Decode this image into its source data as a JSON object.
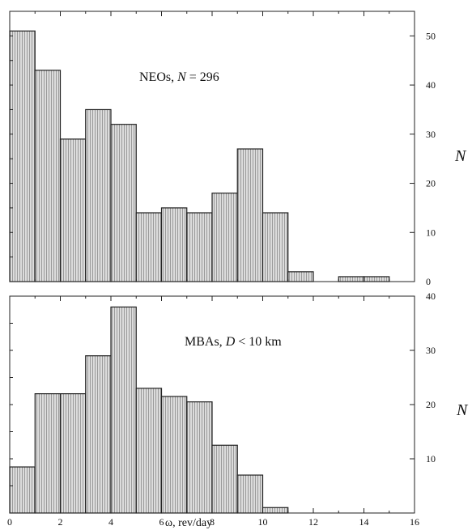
{
  "chart_data": [
    {
      "type": "bar",
      "annotation": {
        "prefix": "NEOs, ",
        "var": "N",
        "rest": " = 296"
      },
      "ylabel": "N",
      "xlim": [
        0,
        16
      ],
      "ylim": [
        0,
        55
      ],
      "bin_edges": [
        0,
        1,
        2,
        3,
        4,
        5,
        6,
        7,
        8,
        9,
        10,
        11,
        12,
        13,
        14,
        15
      ],
      "values": [
        51,
        43,
        29,
        35,
        32,
        14,
        15,
        14,
        18,
        27,
        14,
        2,
        0,
        1,
        1
      ],
      "yticks": [
        "0",
        "10",
        "20",
        "30",
        "40",
        "50"
      ],
      "ytick_values": [
        0,
        10,
        20,
        30,
        40,
        50
      ]
    },
    {
      "type": "bar",
      "annotation": {
        "prefix": "MBAs, ",
        "var": "D",
        "rest": " < 10 km"
      },
      "ylabel": "N",
      "xlabel": "ω,  rev/day",
      "xlim": [
        0,
        16
      ],
      "ylim": [
        0,
        40
      ],
      "bin_edges": [
        0,
        1,
        2,
        3,
        4,
        5,
        6,
        7,
        8,
        9,
        10,
        11
      ],
      "values": [
        8.5,
        22,
        22,
        29,
        38,
        23,
        21.5,
        20.5,
        12.5,
        7,
        1
      ],
      "yticks": [
        "10",
        "20",
        "30",
        "40"
      ],
      "ytick_values": [
        10,
        20,
        30,
        40
      ],
      "xticks": [
        "0",
        "2",
        "4",
        "6",
        "8",
        "10",
        "12",
        "14",
        "16"
      ],
      "xtick_values": [
        0,
        2,
        4,
        6,
        8,
        10,
        12,
        14,
        16
      ]
    }
  ],
  "colors": {
    "bar_fill": "#dcdcdc",
    "hatch": "#8a8a8a",
    "axis": "#222222"
  }
}
